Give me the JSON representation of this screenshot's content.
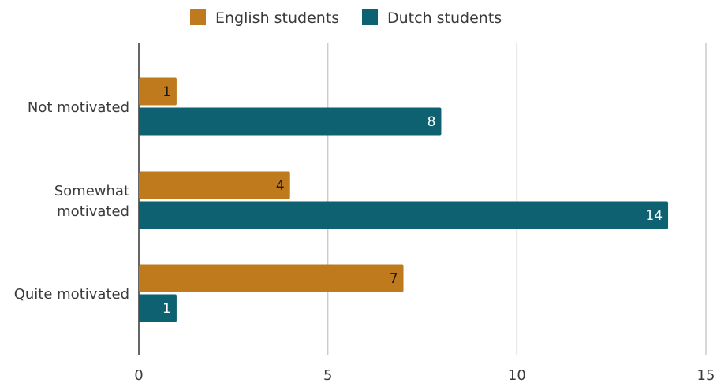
{
  "chart_data": {
    "type": "bar",
    "orientation": "horizontal",
    "categories": [
      "Not motivated",
      "Somewhat motivated",
      "Quite motivated"
    ],
    "category_lines": [
      [
        "Not motivated"
      ],
      [
        "Somewhat",
        "motivated"
      ],
      [
        "Quite motivated"
      ]
    ],
    "series": [
      {
        "name": "English students",
        "values": [
          1,
          4,
          7
        ],
        "color": "#c07a1e",
        "label_color": "#1a1a1a"
      },
      {
        "name": "Dutch students",
        "values": [
          8,
          14,
          1
        ],
        "color": "#0d6170",
        "label_color": "#ffffff"
      }
    ],
    "xlim": [
      0,
      15
    ],
    "xticks": [
      "0",
      "5",
      "10",
      "15"
    ],
    "grid": "vertical",
    "legend_position": "top-center",
    "data_labels": true
  }
}
